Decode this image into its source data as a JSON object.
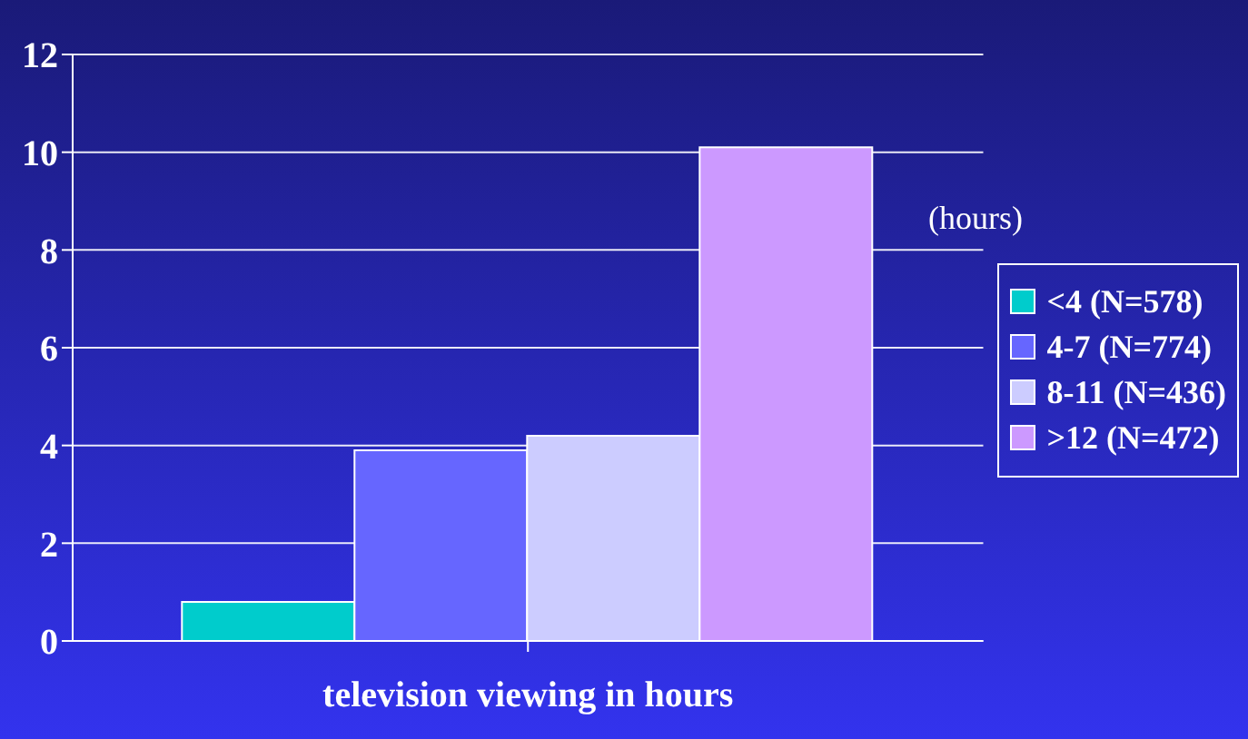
{
  "chart_data": {
    "type": "bar",
    "xlabel": "television viewing in hours",
    "ylabel": "(hours)",
    "categories": [
      null
    ],
    "series": [
      {
        "name": "<4 (N=578)",
        "color": "#00cccc",
        "values": [
          0.8
        ]
      },
      {
        "name": "4-7 (N=774)",
        "color": "#6666ff",
        "values": [
          3.9
        ]
      },
      {
        "name": "8-11 (N=436)",
        "color": "#ccccff",
        "values": [
          4.2
        ]
      },
      {
        "name": ">12 (N=472)",
        "color": "#cc99ff",
        "values": [
          10.1
        ]
      }
    ],
    "ylim": [
      0,
      12
    ],
    "yticks": [
      0,
      2,
      4,
      6,
      8,
      10,
      12
    ],
    "grid": "y",
    "legend": "right"
  }
}
